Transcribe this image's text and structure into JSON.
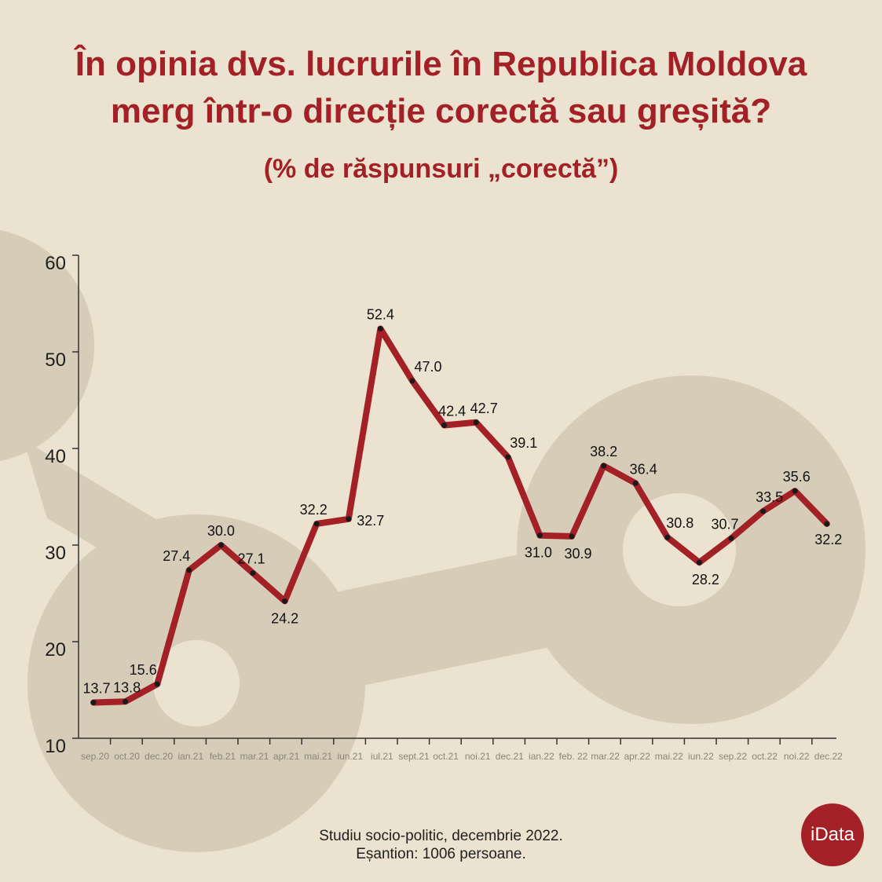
{
  "header": {
    "title_line1": "În opinia dvs. lucrurile în Republica Moldova",
    "title_line2": "merg într-o direcție corectă sau greșită?",
    "subtitle": "(% de răspunsuri „corectă”)"
  },
  "footer": {
    "line1": "Studiu socio-politic, decembrie 2022.",
    "line2": "Eșantion: 1006 persoane."
  },
  "logo": {
    "text": "iData"
  },
  "colors": {
    "line": "#a32126",
    "background": "#ebe3cf",
    "decor": "#d6ccb8",
    "axis": "#333333"
  },
  "chart_data": {
    "type": "line",
    "categories": [
      "sep.20",
      "oct.20",
      "dec.20",
      "ian.21",
      "feb.21",
      "mar.21",
      "apr.21",
      "mai.21",
      "iun.21",
      "iul.21",
      "sept.21",
      "oct.21",
      "noi.21",
      "dec.21",
      "ian.22",
      "feb. 22",
      "mar.22",
      "apr.22",
      "mai.22",
      "iun.22",
      "sep.22",
      "oct.22",
      "noi.22",
      "dec.22"
    ],
    "values": [
      13.7,
      13.8,
      15.6,
      27.4,
      30.0,
      27.1,
      24.2,
      32.2,
      32.7,
      52.4,
      47.0,
      42.4,
      42.7,
      39.1,
      31.0,
      30.9,
      38.2,
      36.4,
      30.8,
      28.2,
      30.7,
      33.5,
      35.6,
      32.2
    ],
    "labels": [
      "13.7",
      "13.8",
      "15.6",
      "27.4",
      "30.0",
      "27.1",
      "24.2",
      "32.2",
      "32.7",
      "52.4",
      "47.0",
      "42.4",
      "42.7",
      "39.1",
      "31.0",
      "30.9",
      "38.2",
      "36.4",
      "30.8",
      "28.2",
      "30.7",
      "33.5",
      "35.6",
      "32.2"
    ],
    "ylim": [
      10,
      60
    ],
    "yticks": [
      "10",
      "20",
      "30",
      "40",
      "50",
      "60"
    ],
    "legend": "none",
    "grid": false
  }
}
